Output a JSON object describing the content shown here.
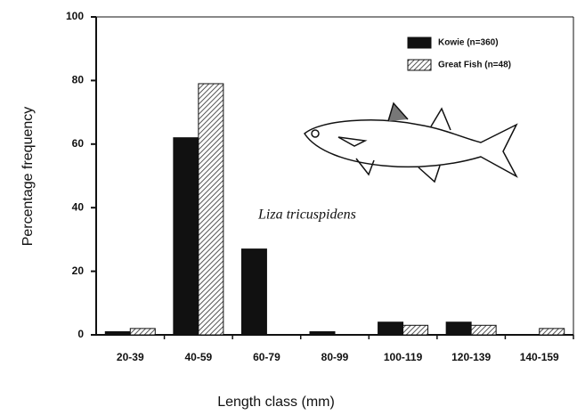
{
  "chart_data": {
    "type": "bar",
    "x_label": "Length class (mm)",
    "y_label": "Percentage frequency",
    "annotation": "Liza tricuspidens",
    "categories": [
      "20-39",
      "40-59",
      "60-79",
      "80-99",
      "100-119",
      "120-139",
      "140-159"
    ],
    "series": [
      {
        "name": "Kowie (n=360)",
        "color": "#111111",
        "values": [
          1,
          62,
          27,
          1,
          4,
          4,
          0
        ]
      },
      {
        "name": "Great Fish (n=48)",
        "color": "#555555",
        "values": [
          2,
          79,
          0,
          0,
          3,
          3,
          2
        ]
      }
    ],
    "ylim": [
      0,
      100
    ],
    "yticks": [
      0,
      20,
      40,
      60,
      80,
      100
    ]
  }
}
